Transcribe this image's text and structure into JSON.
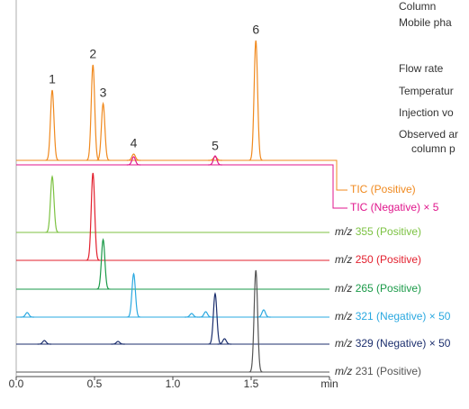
{
  "chart_data": {
    "type": "chromatogram",
    "xlim": [
      0,
      2.0
    ],
    "xticks": [
      {
        "value": 0,
        "label": "0.0"
      },
      {
        "value": 0.5,
        "label": "0.5"
      },
      {
        "value": 1.0,
        "label": "1.0"
      },
      {
        "value": 1.5,
        "label": "1.5"
      }
    ],
    "x_label": "min",
    "series": [
      {
        "name": "TIC (Positive)",
        "color": "#f0891e",
        "peaks": [
          {
            "t": 0.23,
            "h": 78,
            "label": "1"
          },
          {
            "t": 0.49,
            "h": 106,
            "label": "2"
          },
          {
            "t": 0.555,
            "h": 63,
            "label": "3"
          },
          {
            "t": 0.75,
            "h": 7,
            "label": "4"
          },
          {
            "t": 1.27,
            "h": 4,
            "label": "5"
          },
          {
            "t": 1.53,
            "h": 133,
            "label": "6"
          }
        ]
      },
      {
        "name": "TIC (Negative) × 5",
        "color": "#e0168c",
        "peaks": [
          {
            "t": 0.75,
            "h": 9
          },
          {
            "t": 1.27,
            "h": 10
          }
        ]
      },
      {
        "prefix": "m/z",
        "name": "355 (Positive)",
        "color": "#7cc242",
        "peaks": [
          {
            "t": 0.23,
            "h": 62
          }
        ]
      },
      {
        "prefix": "m/z",
        "name": "250 (Positive)",
        "color": "#e3202e",
        "peaks": [
          {
            "t": 0.49,
            "h": 97
          }
        ]
      },
      {
        "prefix": "m/z",
        "name": "265 (Positive)",
        "color": "#1a9a48",
        "peaks": [
          {
            "t": 0.555,
            "h": 55
          }
        ]
      },
      {
        "prefix": "m/z",
        "name": "321 (Negative) × 50",
        "color": "#2aa8e0",
        "peaks": [
          {
            "t": 0.07,
            "h": 5
          },
          {
            "t": 0.75,
            "h": 48
          },
          {
            "t": 1.12,
            "h": 4
          },
          {
            "t": 1.21,
            "h": 6
          },
          {
            "t": 1.58,
            "h": 8
          }
        ]
      },
      {
        "prefix": "m/z",
        "name": "329 (Negative) × 50",
        "color": "#1c2f6e",
        "peaks": [
          {
            "t": 0.18,
            "h": 4
          },
          {
            "t": 0.65,
            "h": 3
          },
          {
            "t": 1.27,
            "h": 56
          },
          {
            "t": 1.33,
            "h": 6
          }
        ]
      },
      {
        "prefix": "m/z",
        "name": "231 (Positive)",
        "color": "#555555",
        "peaks": [
          {
            "t": 1.53,
            "h": 113
          }
        ]
      }
    ]
  },
  "conditions": [
    "Column",
    "Mobile pha",
    "Flow rate",
    "Temperatur",
    "Injection vo",
    "Observed ar",
    "column p"
  ]
}
